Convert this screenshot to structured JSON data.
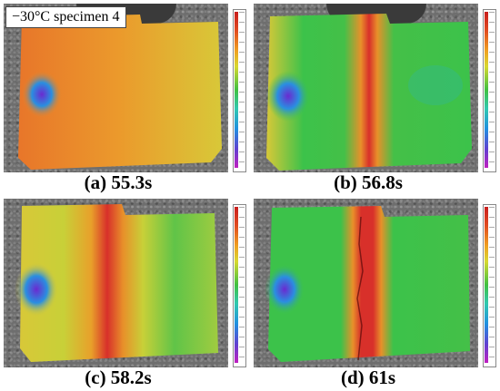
{
  "title_label": "−30°C specimen 4",
  "panels": [
    {
      "caption": "(a) 55.3s",
      "scheme": "uniform-orange"
    },
    {
      "caption": "(b) 56.8s",
      "scheme": "green-band"
    },
    {
      "caption": "(c) 58.2s",
      "scheme": "yellow-band"
    },
    {
      "caption": "(d) 61s",
      "scheme": "green-band-crack"
    }
  ],
  "colors": {
    "high": "#d92c2c",
    "mid_high": "#ee8a2a",
    "mid": "#e0d23a",
    "mid_low": "#3cc24a",
    "low": "#2a7fe0",
    "min": "#c21fc0"
  }
}
